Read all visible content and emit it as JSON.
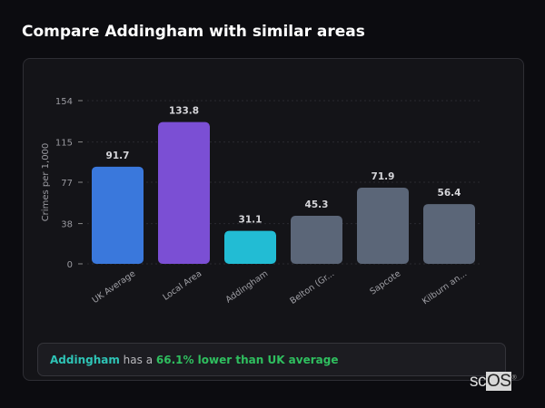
{
  "title": "Compare Addingham with similar areas",
  "chart_data": {
    "type": "bar",
    "categories": [
      "UK Average",
      "Local Area",
      "Addingham",
      "Belton (Gr...",
      "Sapcote",
      "Kilburn an..."
    ],
    "values": [
      91.7,
      133.8,
      31.1,
      45.3,
      71.9,
      56.4
    ],
    "value_labels": [
      "91.7",
      "133.8",
      "31.1",
      "45.3",
      "71.9",
      "56.4"
    ],
    "colors": [
      "#3a78dc",
      "#7b4fd4",
      "#22bcd4",
      "#5b6678",
      "#5b6678",
      "#5b6678"
    ],
    "ylabel": "Crimes per 1,000",
    "yticks": [
      0,
      38,
      77,
      115,
      154
    ],
    "ylim": [
      0,
      154
    ],
    "grid": true
  },
  "footer": {
    "area": "Addingham",
    "middle": " has a ",
    "comparison": "66.1% lower than UK average"
  },
  "logo": {
    "text": "scOS"
  }
}
